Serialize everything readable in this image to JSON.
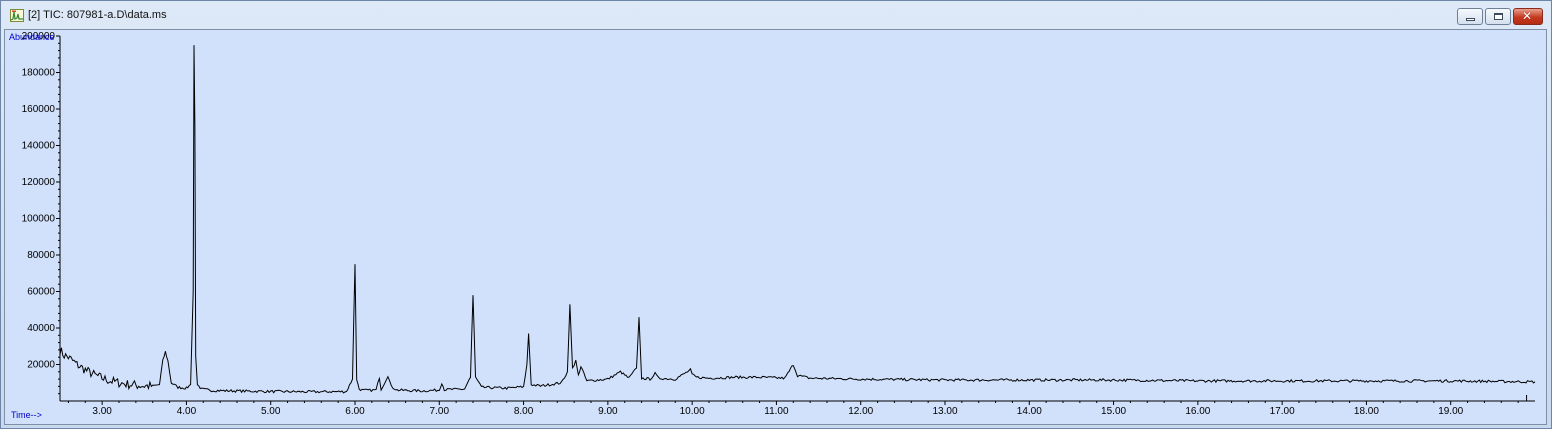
{
  "window": {
    "title": "[2] TIC: 807981-a.D\\data.ms",
    "icon": "chromatogram-app-icon",
    "controls": {
      "minimize_icon": "minimize-icon",
      "maximize_icon": "maximize-icon",
      "close_icon": "close-icon"
    }
  },
  "colors": {
    "trace": "#000000",
    "axis_labels": "#0000cc",
    "plot_bg": "#d1e1fb",
    "window_frame": "#c9d9ec"
  },
  "chart_data": {
    "type": "line",
    "title": "",
    "ylabel": "Abundance",
    "xlabel": "Time-->",
    "xlim": [
      2.5,
      20.0
    ],
    "ylim": [
      0,
      200000
    ],
    "grid": false,
    "legend": "none",
    "yticks": [
      20000,
      40000,
      60000,
      80000,
      100000,
      120000,
      140000,
      160000,
      180000,
      200000
    ],
    "ytick_labels": [
      "20000",
      "40000",
      "60000",
      "80000",
      "100000",
      "120000",
      "140000",
      "160000",
      "180000",
      "200000"
    ],
    "xticks": [
      3.0,
      4.0,
      5.0,
      6.0,
      7.0,
      8.0,
      9.0,
      10.0,
      11.0,
      12.0,
      13.0,
      14.0,
      15.0,
      16.0,
      17.0,
      18.0,
      19.0
    ],
    "xtick_labels": [
      "3.00",
      "4.00",
      "5.00",
      "6.00",
      "7.00",
      "8.00",
      "9.00",
      "10.00",
      "11.00",
      "12.00",
      "13.00",
      "14.00",
      "15.00",
      "16.00",
      "17.00",
      "18.00",
      "19.00"
    ],
    "series": [
      {
        "x": [
          2.5,
          2.55,
          2.6,
          2.7,
          2.8,
          2.9,
          3.0,
          3.1,
          3.2,
          3.3,
          3.4,
          3.5,
          3.6,
          3.68,
          3.72,
          3.75,
          3.78,
          3.82,
          3.9,
          4.0,
          4.05,
          4.08,
          4.09,
          4.1,
          4.11,
          4.13,
          4.18,
          4.3,
          4.6,
          5.0,
          5.5,
          5.9,
          5.97,
          6.0,
          6.02,
          6.05,
          6.1,
          6.25,
          6.29,
          6.31,
          6.35,
          6.39,
          6.43,
          6.5,
          6.8,
          7.0,
          7.03,
          7.06,
          7.3,
          7.37,
          7.4,
          7.43,
          7.5,
          7.8,
          8.0,
          8.04,
          8.06,
          8.09,
          8.2,
          8.45,
          8.52,
          8.55,
          8.58,
          8.62,
          8.65,
          8.68,
          8.75,
          9.0,
          9.15,
          9.25,
          9.34,
          9.37,
          9.4,
          9.5,
          9.56,
          9.6,
          9.8,
          9.98,
          10.0,
          10.05,
          10.2,
          10.5,
          10.8,
          11.1,
          11.2,
          11.25,
          11.4,
          12.0,
          13.0,
          14.0,
          15.0,
          16.0,
          17.0,
          18.0,
          19.0,
          20.0
        ],
        "y": [
          28000,
          25000,
          24000,
          20000,
          17000,
          14500,
          12500,
          11000,
          10000,
          9200,
          8700,
          8300,
          8200,
          9000,
          22000,
          27000,
          22000,
          10000,
          7500,
          7000,
          9000,
          60000,
          195000,
          150000,
          25000,
          9000,
          6500,
          5800,
          5500,
          5200,
          5000,
          5200,
          12000,
          75000,
          12000,
          6500,
          5800,
          6000,
          13000,
          6500,
          10000,
          14000,
          8000,
          6000,
          5500,
          6000,
          10000,
          6200,
          6500,
          13000,
          58000,
          13000,
          7500,
          7000,
          7800,
          20000,
          37000,
          9000,
          8200,
          10000,
          16000,
          53000,
          18000,
          22000,
          14000,
          19000,
          11000,
          12000,
          16000,
          12500,
          18000,
          46000,
          12500,
          12000,
          15000,
          12500,
          12000,
          17000,
          14500,
          13000,
          12500,
          13000,
          13000,
          12500,
          20000,
          14000,
          12500,
          12000,
          11500,
          11500,
          11500,
          11000,
          11000,
          11000,
          11000,
          10500
        ]
      }
    ]
  }
}
